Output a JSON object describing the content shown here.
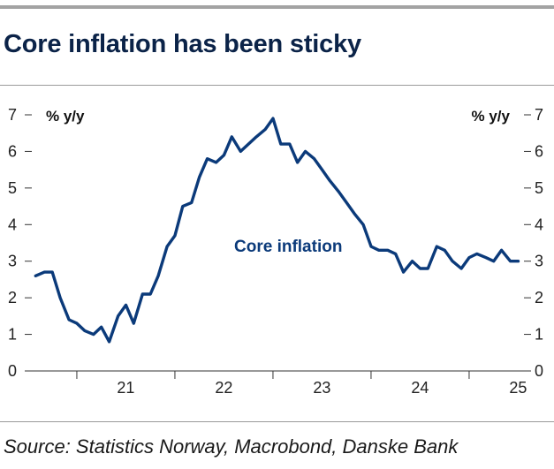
{
  "title": "Core inflation has been sticky",
  "source": "Source: Statistics Norway, Macrobond, Danske Bank",
  "colors": {
    "line": "#0b3a7a",
    "title": "#0b2348"
  },
  "chart_data": {
    "type": "line",
    "title": "Core inflation has been sticky",
    "ylabel_left": "% y/y",
    "ylabel_right": "% y/y",
    "ylim": [
      0,
      7
    ],
    "yticks": [
      0,
      1,
      2,
      3,
      4,
      5,
      6,
      7
    ],
    "xlim": [
      2020.55,
      2025.55
    ],
    "xtick_labels": [
      {
        "label": "21",
        "x": 2021.5
      },
      {
        "label": "22",
        "x": 2022.5
      },
      {
        "label": "23",
        "x": 2023.5
      },
      {
        "label": "24",
        "x": 2024.5
      },
      {
        "label": "25",
        "x": 2025.5
      }
    ],
    "year_boundaries": [
      2021,
      2022,
      2023,
      2024,
      2025
    ],
    "grid": false,
    "series": [
      {
        "name": "Core inflation",
        "x": [
          2020.58,
          2020.67,
          2020.75,
          2020.83,
          2020.92,
          2021.0,
          2021.08,
          2021.17,
          2021.25,
          2021.33,
          2021.42,
          2021.5,
          2021.58,
          2021.67,
          2021.75,
          2021.83,
          2021.92,
          2022.0,
          2022.08,
          2022.17,
          2022.25,
          2022.33,
          2022.42,
          2022.5,
          2022.58,
          2022.67,
          2022.75,
          2022.83,
          2022.92,
          2023.0,
          2023.08,
          2023.17,
          2023.25,
          2023.33,
          2023.42,
          2023.5,
          2023.58,
          2023.67,
          2023.75,
          2023.83,
          2023.92,
          2024.0,
          2024.08,
          2024.17,
          2024.25,
          2024.33,
          2024.42,
          2024.5,
          2024.58,
          2024.67,
          2024.75,
          2024.83,
          2024.92,
          2025.0,
          2025.08,
          2025.17,
          2025.25,
          2025.33,
          2025.42,
          2025.5
        ],
        "values": [
          2.6,
          2.7,
          2.7,
          2.0,
          1.4,
          1.3,
          1.1,
          1.0,
          1.2,
          0.8,
          1.5,
          1.8,
          1.3,
          2.1,
          2.1,
          2.6,
          3.4,
          3.7,
          4.5,
          4.6,
          5.3,
          5.8,
          5.7,
          5.9,
          6.4,
          6.0,
          6.2,
          6.4,
          6.6,
          6.9,
          6.2,
          6.2,
          5.7,
          6.0,
          5.8,
          5.5,
          5.2,
          4.9,
          4.6,
          4.3,
          4.0,
          3.4,
          3.3,
          3.3,
          3.2,
          2.7,
          3.0,
          2.8,
          2.8,
          3.4,
          3.3,
          3.0,
          2.8,
          3.1,
          3.2,
          3.1,
          3.0,
          3.3,
          3.0,
          3.0
        ]
      }
    ],
    "annotations": [
      {
        "text": "Core inflation"
      }
    ]
  }
}
